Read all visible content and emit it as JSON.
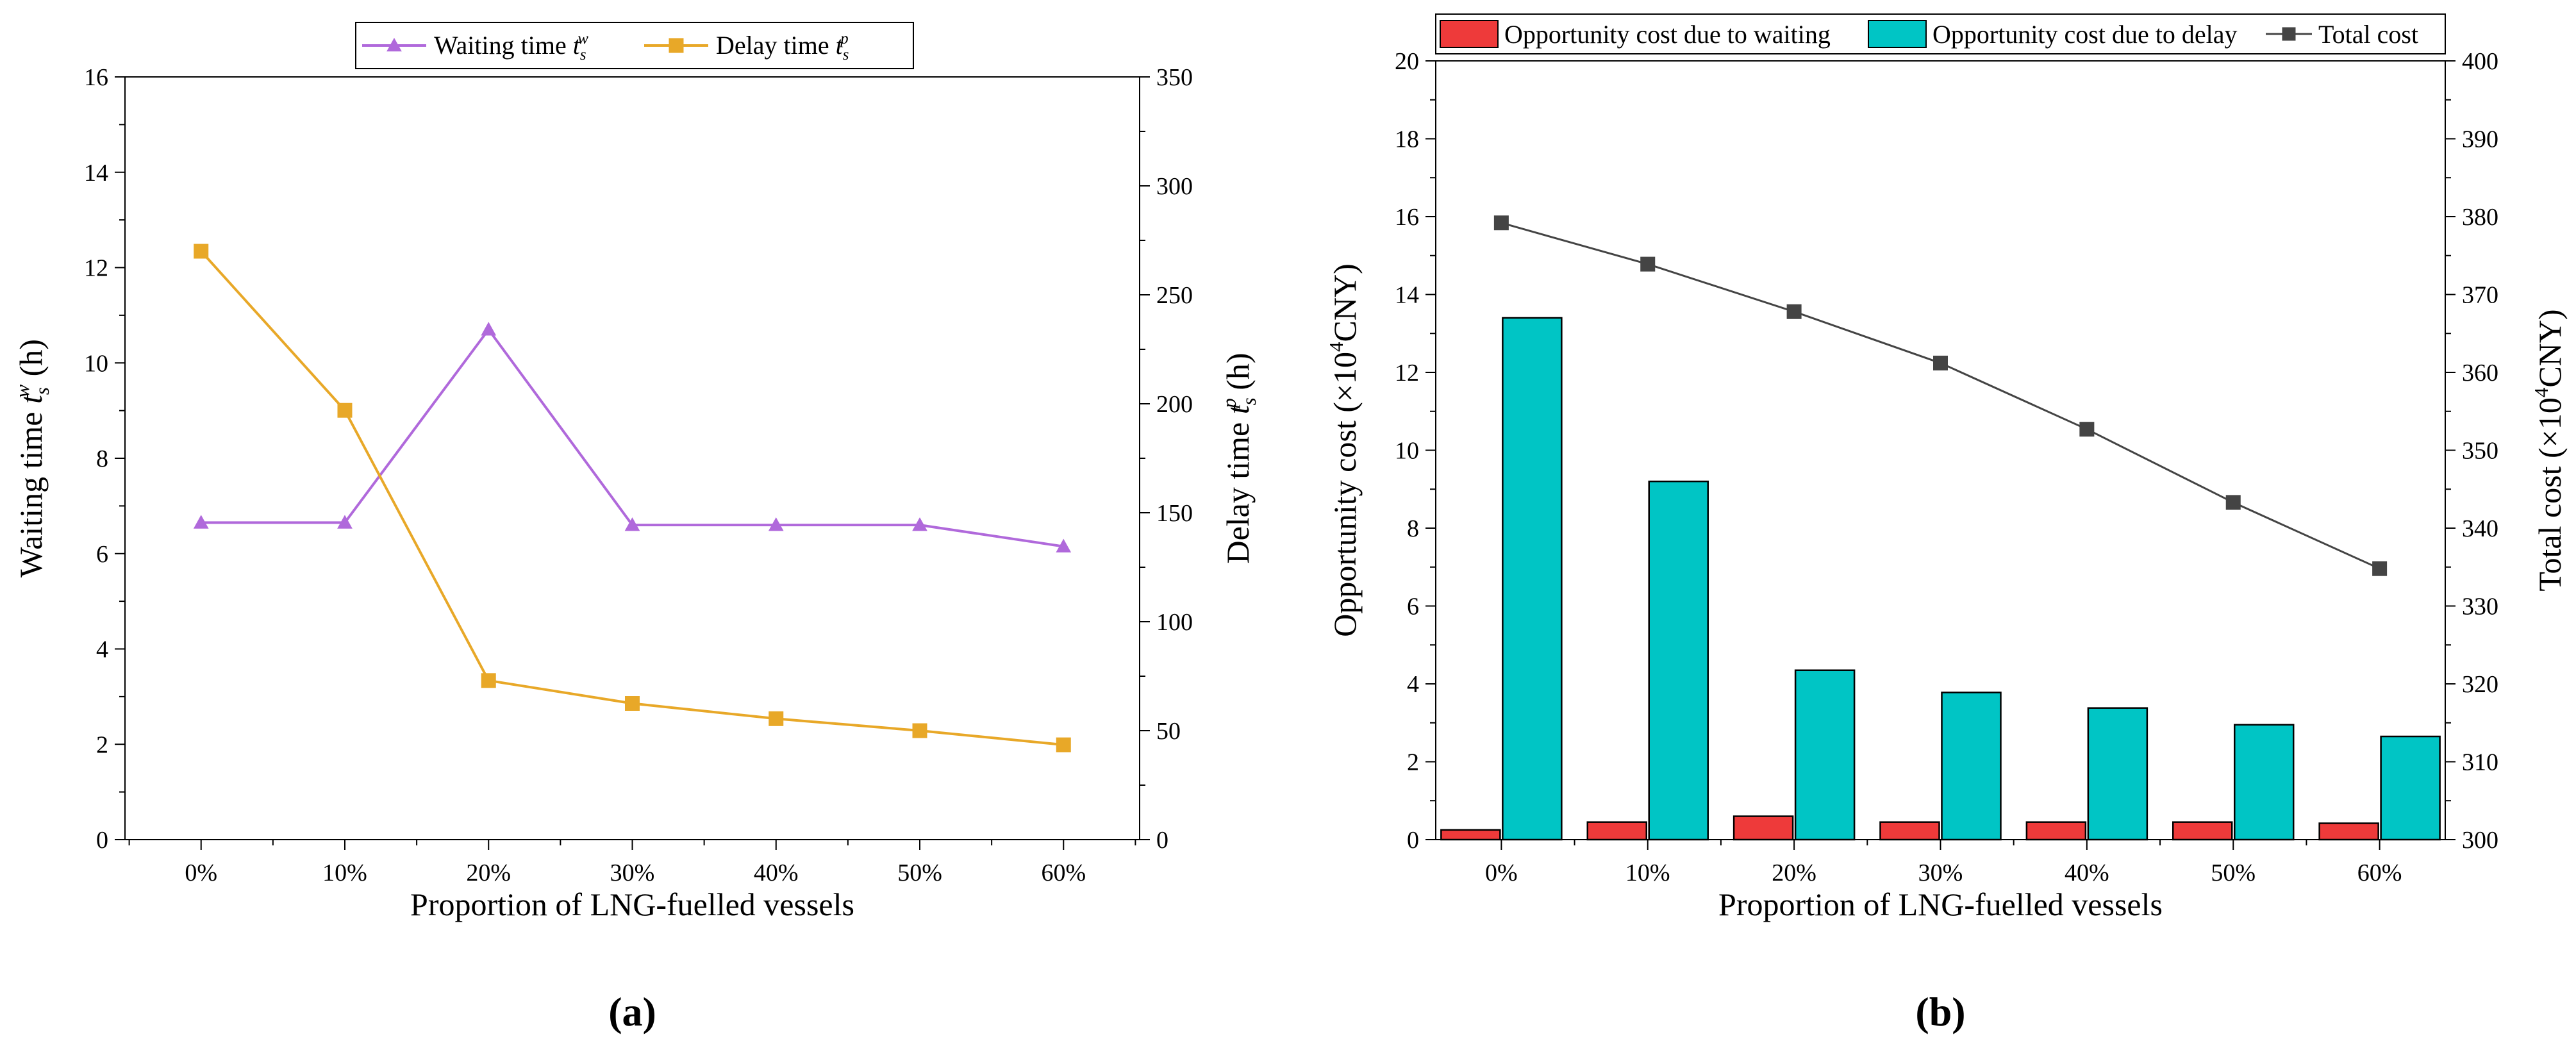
{
  "chart_data": [
    {
      "panel_label": "(a)",
      "type": "line",
      "categories": [
        "0%",
        "10%",
        "20%",
        "30%",
        "40%",
        "50%",
        "60%"
      ],
      "xlabel": "Proportion of LNG-fuelled vessels",
      "ylabel": {
        "base": "Waiting time ",
        "var": "t",
        "sub": "s",
        "sup": "w",
        "unit": " (h)"
      },
      "y2label": {
        "base": "Delay time ",
        "var": "t",
        "sub": "s",
        "sup": "p",
        "unit": " (h)"
      },
      "ylim": [
        0,
        16
      ],
      "yticks": [
        0,
        2,
        4,
        6,
        8,
        10,
        12,
        14,
        16
      ],
      "y2lim": [
        0,
        350
      ],
      "y2ticks": [
        0,
        50,
        100,
        150,
        200,
        250,
        300,
        350
      ],
      "grid": false,
      "legend_position": "top-center",
      "series": [
        {
          "name": {
            "base": "Waiting time ",
            "var": "t",
            "sub": "s",
            "sup": "w"
          },
          "axis": "left",
          "marker": "triangle",
          "color": "#B069DB",
          "values": [
            6.65,
            6.65,
            10.7,
            6.6,
            6.6,
            6.6,
            6.15
          ]
        },
        {
          "name": {
            "base": "Delay time ",
            "var": "t",
            "sub": "s",
            "sup": "p"
          },
          "axis": "right",
          "marker": "square",
          "color": "#E8A828",
          "values": [
            270,
            197,
            73,
            62.5,
            55.5,
            50,
            43.5
          ]
        }
      ]
    },
    {
      "panel_label": "(b)",
      "type": "bar",
      "categories": [
        "0%",
        "10%",
        "20%",
        "30%",
        "40%",
        "50%",
        "60%"
      ],
      "xlabel": "Proportion of LNG-fuelled vessels",
      "ylabel": {
        "base": "Opportunity cost (×10",
        "sup": "4",
        "unit": "CNY)"
      },
      "y2label": {
        "base": "Total cost (×10",
        "sup": "4",
        "unit": "CNY)"
      },
      "ylim": [
        0,
        20
      ],
      "yticks": [
        0,
        2,
        4,
        6,
        8,
        10,
        12,
        14,
        16,
        18,
        20
      ],
      "y2lim": [
        300,
        400
      ],
      "y2ticks": [
        300,
        310,
        320,
        330,
        340,
        350,
        360,
        370,
        380,
        390,
        400
      ],
      "grid": false,
      "legend_position": "top",
      "series": [
        {
          "name": "Opportunity cost due to waiting",
          "kind": "bar",
          "axis": "left",
          "color": "#EE3A3A",
          "values": [
            0.25,
            0.45,
            0.6,
            0.45,
            0.45,
            0.45,
            0.42
          ]
        },
        {
          "name": "Opportunity cost due to delay",
          "kind": "bar",
          "axis": "left",
          "color": "#00C5C5",
          "values": [
            13.4,
            9.2,
            4.35,
            3.78,
            3.38,
            2.95,
            2.65
          ]
        },
        {
          "name": "Total cost",
          "kind": "line",
          "axis": "right",
          "marker": "square",
          "color": "#444444",
          "values": [
            379.2,
            373.9,
            367.8,
            361.2,
            352.7,
            343.3,
            334.8
          ]
        }
      ]
    }
  ]
}
